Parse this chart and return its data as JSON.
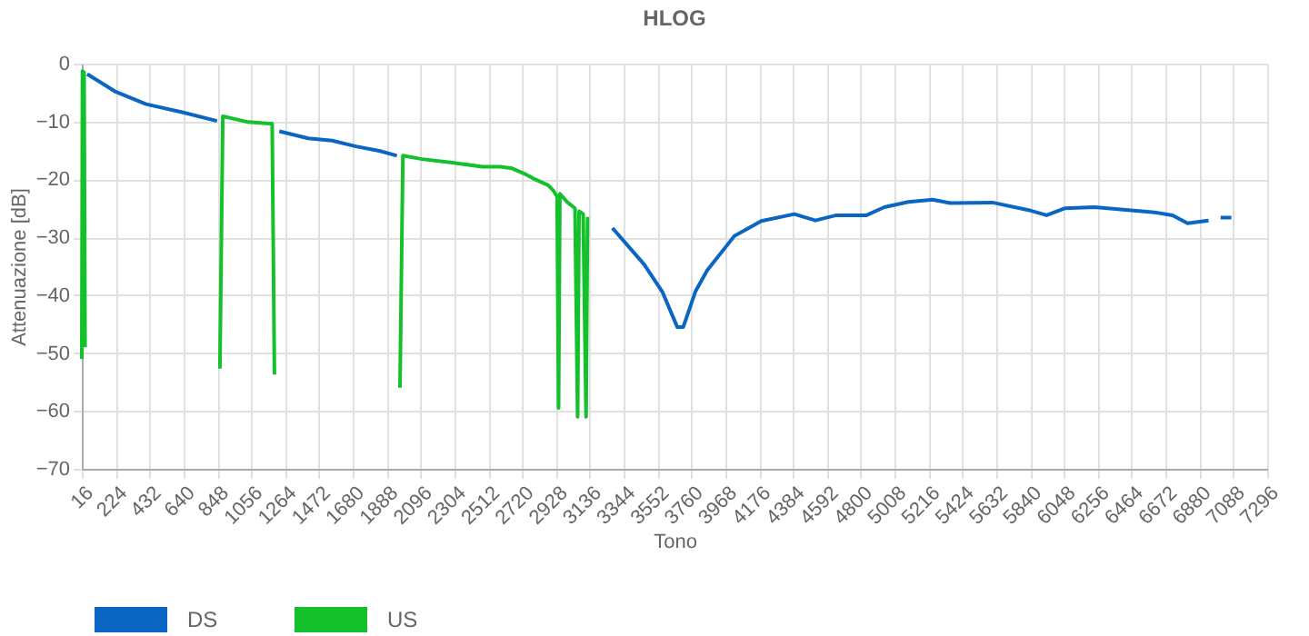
{
  "chart_data": {
    "type": "line",
    "title": "HLOG",
    "xlabel": "Tono",
    "ylabel": "Attenuazione [dB]",
    "xlim": [
      16,
      7296
    ],
    "xticks": [
      16,
      224,
      432,
      640,
      848,
      1056,
      1264,
      1472,
      1680,
      1888,
      2096,
      2304,
      2512,
      2720,
      2928,
      3136,
      3344,
      3552,
      3760,
      3968,
      4176,
      4384,
      4592,
      4800,
      5008,
      5216,
      5424,
      5632,
      5840,
      6048,
      6256,
      6464,
      6672,
      6880,
      7088,
      7296
    ],
    "ylim": [
      -70,
      0
    ],
    "yticks": [
      0,
      -10,
      -20,
      -30,
      -40,
      -50,
      -60,
      -70
    ],
    "grid": true,
    "legend": "bottom",
    "marker": "none",
    "line_style": "solid",
    "series": [
      {
        "name": "DS",
        "color": "#0a66c2",
        "x": [
          49,
          226,
          411,
          632,
          846,
          1000,
          1229,
          1406,
          1553,
          1700,
          1848,
          1951,
          2500,
          3275,
          3470,
          3581,
          3673,
          3710,
          3784,
          3857,
          4023,
          4189,
          4392,
          4521,
          4650,
          4835,
          4945,
          5092,
          5240,
          5350,
          5609,
          5830,
          5941,
          6052,
          6236,
          6604,
          6715,
          6807,
          6936,
          6970,
          7010,
          7076
        ],
        "values": [
          -1.8,
          -4.9,
          -7.0,
          -8.4,
          -9.9,
          null,
          -11.7,
          -12.9,
          -13.3,
          -14.3,
          -15.1,
          -15.9,
          null,
          -28.4,
          -34.7,
          -39.4,
          -45.5,
          -45.5,
          -39.4,
          -35.7,
          -29.8,
          -27.2,
          -26.0,
          -27.1,
          -26.2,
          -26.2,
          -24.8,
          -23.9,
          -23.5,
          -24.1,
          -24.0,
          -25.3,
          -26.2,
          -25.0,
          -24.8,
          -25.7,
          -26.2,
          -27.6,
          -27.1,
          null,
          -26.6,
          -26.6
        ]
      },
      {
        "name": "US",
        "color": "#14c02c",
        "x": [
          16,
          20,
          30,
          36,
          400,
          864,
          882,
          1037,
          1185,
          1199,
          1500,
          1970,
          1988,
          2106,
          2291,
          2475,
          2585,
          2659,
          2733,
          2800,
          2880,
          2914,
          2935,
          2944,
          2952,
          3000,
          3045,
          3061,
          3070,
          3095,
          3113,
          3122
        ],
        "values": [
          -51,
          -1.3,
          -1.5,
          -49,
          null,
          -52.7,
          -9.1,
          -10.1,
          -10.4,
          -53.7,
          null,
          -56,
          -15.9,
          -16.5,
          -17.1,
          -17.8,
          -17.8,
          -18.1,
          -19,
          -20,
          -21,
          -22,
          -23,
          -59.5,
          -22.5,
          -24,
          -25,
          -61,
          -25.5,
          -26,
          -61,
          -26.5
        ]
      }
    ]
  }
}
